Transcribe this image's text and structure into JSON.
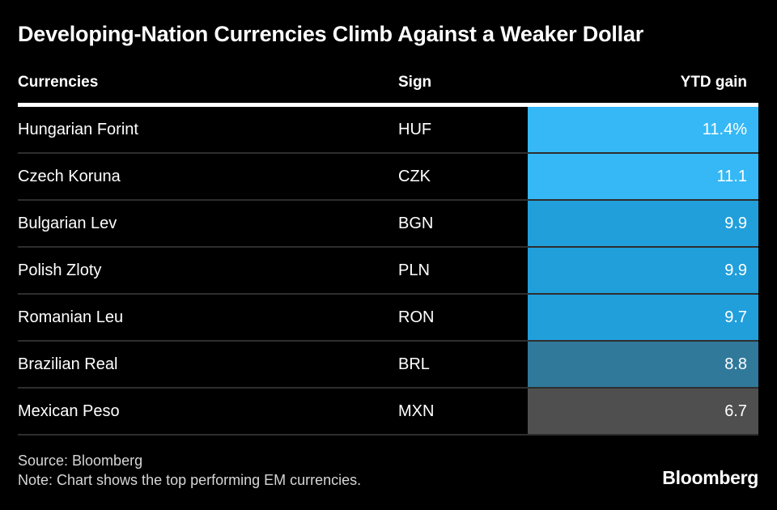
{
  "title": "Developing-Nation Currencies Climb Against a Weaker Dollar",
  "colors": {
    "background": "#000000",
    "header_rule": "#ffffff",
    "row_separator": "#2e2e2e",
    "bright_blue": "#35B8F5",
    "medium_blue": "#219FDB",
    "teal_blue": "#30799B",
    "gray": "#4F4F4F"
  },
  "table": {
    "columns": [
      "Currencies",
      "Sign",
      "YTD gain"
    ],
    "rows": [
      {
        "currency": "Hungarian Forint",
        "sign": "HUF",
        "ytd": "11.4%",
        "color": "#35B8F5"
      },
      {
        "currency": "Czech Koruna",
        "sign": "CZK",
        "ytd": "11.1",
        "color": "#35B8F5"
      },
      {
        "currency": "Bulgarian Lev",
        "sign": "BGN",
        "ytd": "9.9",
        "color": "#219FDB"
      },
      {
        "currency": "Polish Zloty",
        "sign": "PLN",
        "ytd": "9.9",
        "color": "#219FDB"
      },
      {
        "currency": "Romanian Leu",
        "sign": "RON",
        "ytd": "9.7",
        "color": "#219FDB"
      },
      {
        "currency": "Brazilian Real",
        "sign": "BRL",
        "ytd": "8.8",
        "color": "#30799B"
      },
      {
        "currency": "Mexican Peso",
        "sign": "MXN",
        "ytd": "6.7",
        "color": "#4F4F4F"
      }
    ]
  },
  "footer": {
    "source": "Source: Bloomberg",
    "note": "Note: Chart shows the top performing EM currencies.",
    "brand": "Bloomberg"
  },
  "chart_data": {
    "type": "table",
    "title": "Developing-Nation Currencies Climb Against a Weaker Dollar",
    "columns": [
      "Currencies",
      "Sign",
      "YTD gain"
    ],
    "rows": [
      [
        "Hungarian Forint",
        "HUF",
        11.4
      ],
      [
        "Czech Koruna",
        "CZK",
        11.1
      ],
      [
        "Bulgarian Lev",
        "BGN",
        9.9
      ],
      [
        "Polish Zloty",
        "PLN",
        9.9
      ],
      [
        "Romanian Leu",
        "RON",
        9.7
      ],
      [
        "Brazilian Real",
        "BRL",
        8.8
      ],
      [
        "Mexican Peso",
        "MXN",
        6.7
      ]
    ],
    "value_unit": "%",
    "value_range": [
      6.7,
      11.4
    ],
    "source": "Bloomberg",
    "note": "Chart shows the top performing EM currencies.",
    "layout": "dark background, value column rendered as colored cells shaded by magnitude"
  }
}
